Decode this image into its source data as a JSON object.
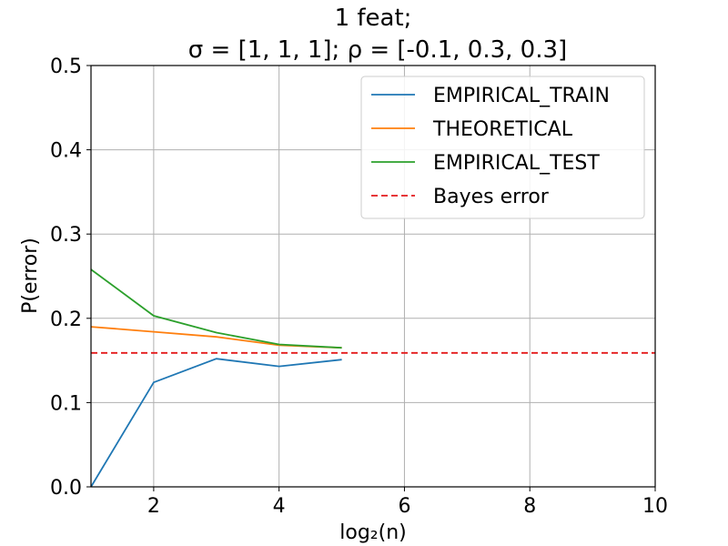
{
  "chart_data": {
    "type": "line",
    "title_line1": "1 feat;",
    "title_line2": "σ = [1, 1, 1];  ρ = [-0.1, 0.3, 0.3]",
    "xlabel": "log₂(n)",
    "ylabel": "P(error)",
    "xlim": [
      1,
      10
    ],
    "ylim": [
      0,
      0.5
    ],
    "xticks": [
      2,
      4,
      6,
      8,
      10
    ],
    "yticks": [
      0.0,
      0.1,
      0.2,
      0.3,
      0.4,
      0.5
    ],
    "grid": true,
    "legend_position": "top-right",
    "series": [
      {
        "name": "EMPIRICAL_TRAIN",
        "color": "#1f77b4",
        "dash": "solid",
        "x": [
          1,
          2,
          3,
          4,
          5
        ],
        "y": [
          0.0,
          0.124,
          0.152,
          0.143,
          0.151
        ]
      },
      {
        "name": "THEORETICAL",
        "color": "#ff7f0e",
        "dash": "solid",
        "x": [
          1,
          2,
          3,
          4,
          5
        ],
        "y": [
          0.19,
          0.184,
          0.178,
          0.168,
          0.165
        ]
      },
      {
        "name": "EMPIRICAL_TEST",
        "color": "#2ca02c",
        "dash": "solid",
        "x": [
          1,
          2,
          3,
          4,
          5
        ],
        "y": [
          0.258,
          0.203,
          0.183,
          0.169,
          0.165
        ]
      },
      {
        "name": "Bayes error",
        "color": "#e41a1c",
        "dash": "dashed",
        "x": [
          1,
          10
        ],
        "y": [
          0.159,
          0.159
        ]
      }
    ]
  }
}
